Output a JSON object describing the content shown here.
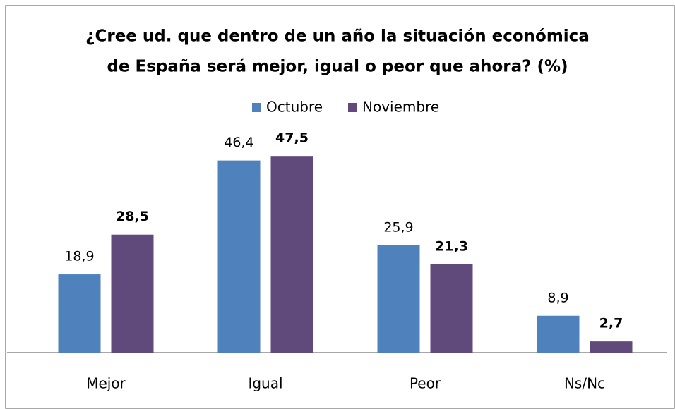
{
  "chart_data": {
    "type": "bar",
    "title": [
      "¿Cree ud. que dentro de un año la situación económica",
      "de España será mejor, igual o peor que ahora? (%)"
    ],
    "categories": [
      "Mejor",
      "Igual",
      "Peor",
      "Ns/Nc"
    ],
    "series": [
      {
        "name": "Octubre",
        "color": "#4f81bd",
        "values": [
          18.9,
          46.4,
          25.9,
          8.9
        ],
        "value_labels": [
          "18,9",
          "46,4",
          "25,9",
          "8,9"
        ]
      },
      {
        "name": "Noviembre",
        "color": "#604a7b",
        "values": [
          28.5,
          47.5,
          21.3,
          2.7
        ],
        "value_labels": [
          "28,5",
          "47,5",
          "21,3",
          "2,7"
        ]
      }
    ],
    "legend": "top"
  }
}
